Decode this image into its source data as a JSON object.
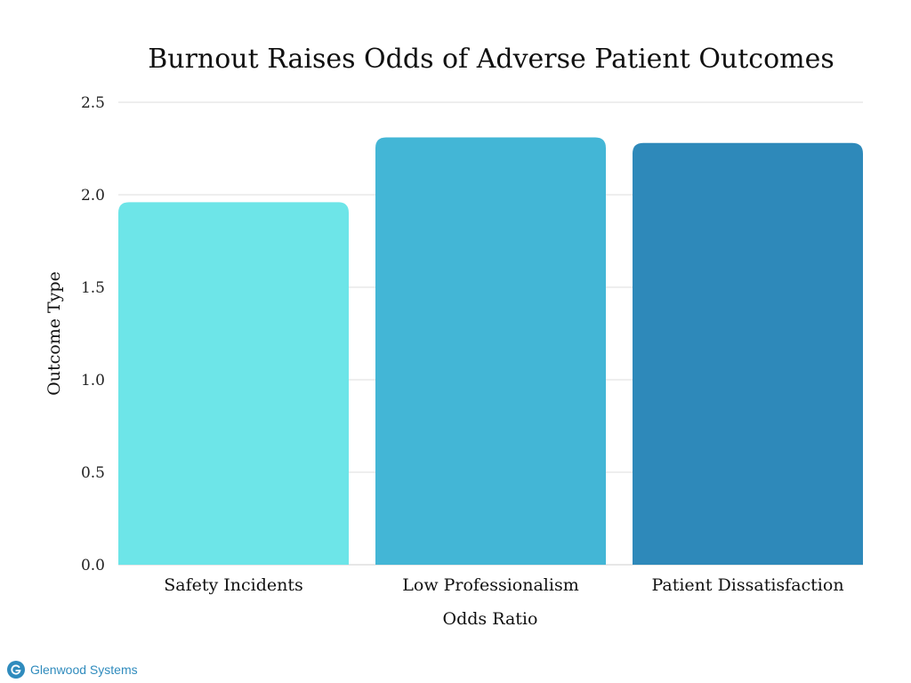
{
  "chart_data": {
    "type": "bar",
    "title": "Burnout Raises Odds of Adverse Patient Outcomes",
    "xlabel": "Odds Ratio",
    "ylabel": "Outcome Type",
    "categories": [
      "Safety Incidents",
      "Low Professionalism",
      "Patient Dissatisfaction"
    ],
    "values": [
      1.96,
      2.31,
      2.28
    ],
    "colors": [
      "#6de5e8",
      "#43b6d6",
      "#2e89ba"
    ],
    "ylim": [
      0,
      2.5
    ],
    "yticks": [
      "0.0",
      "0.5",
      "1.0",
      "1.5",
      "2.0",
      "2.5"
    ],
    "grid": true
  },
  "brand": {
    "name": "Glenwood Systems",
    "color": "#2f8bbd"
  }
}
